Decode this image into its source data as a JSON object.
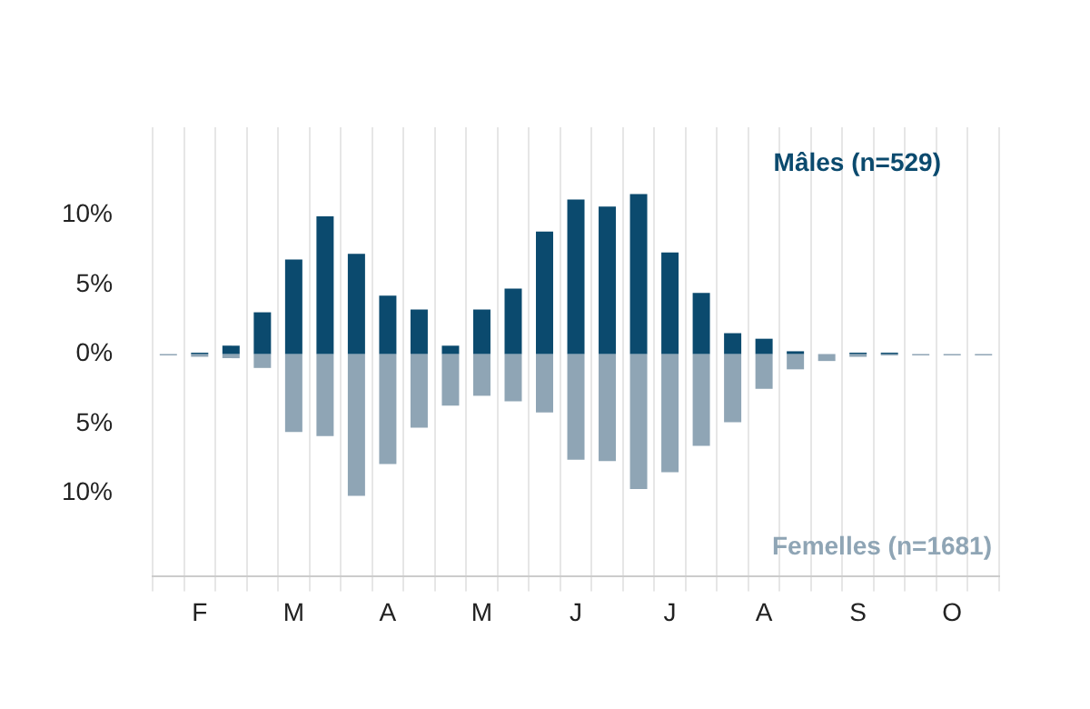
{
  "chart_data": {
    "type": "bar",
    "stacked": true,
    "categories": [
      null,
      "F",
      null,
      null,
      "M",
      null,
      null,
      "A",
      null,
      null,
      "M",
      null,
      null,
      "J",
      null,
      null,
      "J",
      null,
      null,
      "A",
      null,
      null,
      "S",
      null,
      null,
      "O",
      null
    ],
    "series": [
      {
        "name": "Mâles (n=529)",
        "color": "#0b4a6e",
        "values": [
          null,
          0.1,
          0.6,
          3.0,
          6.8,
          9.9,
          7.2,
          4.2,
          3.2,
          0.6,
          3.2,
          4.7,
          8.8,
          11.1,
          10.6,
          11.5,
          7.3,
          4.4,
          1.5,
          1.1,
          0.2,
          null,
          0.1,
          0.1,
          null,
          null,
          null
        ]
      },
      {
        "name": "Femelles (n=1681)",
        "color": "#8fa5b5",
        "values": [
          -0.1,
          -0.2,
          -0.3,
          -1.0,
          -5.6,
          -5.9,
          -10.2,
          -7.9,
          -5.3,
          -3.7,
          -3.0,
          -3.4,
          -4.2,
          -7.6,
          -7.7,
          -9.7,
          -8.5,
          -6.6,
          -4.9,
          -2.5,
          -1.1,
          -0.5,
          -0.2,
          -0.1,
          -0.1,
          -0.1,
          -0.1
        ]
      }
    ],
    "ylim": [
      -16,
      16.3
    ],
    "yticks": [
      {
        "value": 10,
        "label": "10%"
      },
      {
        "value": 5,
        "label": "5%"
      },
      {
        "value": 0,
        "label": "0%"
      },
      {
        "value": -5,
        "label": "5%"
      },
      {
        "value": -10,
        "label": "10%"
      }
    ],
    "grid": "x",
    "legend": false
  }
}
